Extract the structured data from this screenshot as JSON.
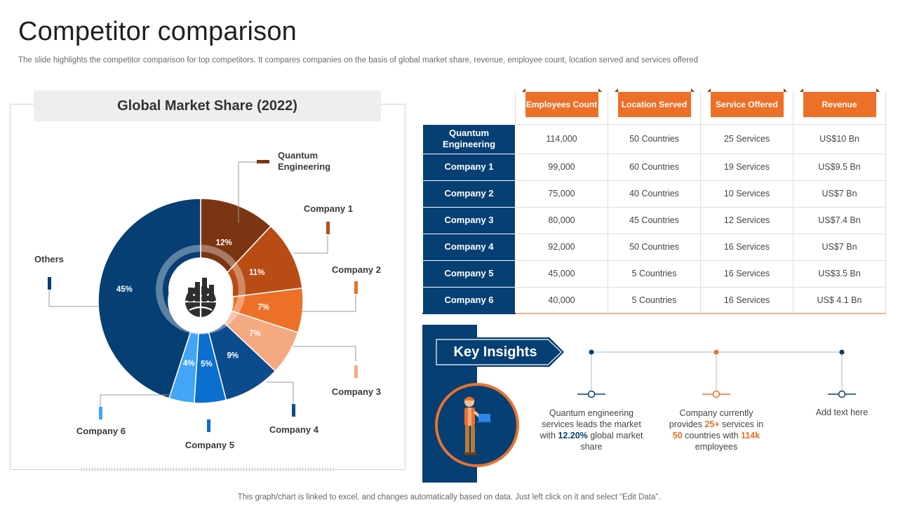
{
  "header": {
    "title": "Competitor comparison",
    "subtitle": "The slide highlights the competitor comparison for top competitors. It compares companies on the basis of global market share, revenue, employee count, location served and services offered"
  },
  "chart_data": {
    "type": "pie",
    "title": "Global Market Share (2022)",
    "categories": [
      "Quantum Engineering",
      "Company 1",
      "Company 2",
      "Company 3",
      "Company 4",
      "Company 5",
      "Company 6",
      "Others"
    ],
    "values": [
      12,
      11,
      7,
      7,
      9,
      5,
      4,
      45
    ],
    "value_labels": [
      "12%",
      "11%",
      "7%",
      "7%",
      "9%",
      "5%",
      "4%",
      "45%"
    ],
    "unit": "%",
    "colors": [
      "#7c3512",
      "#b94c14",
      "#ed7028",
      "#f4a981",
      "#0c4c8c",
      "#0a6fcf",
      "#42a5f5",
      "#063f73"
    ],
    "style": "donut"
  },
  "table": {
    "headers": [
      "Employees Count",
      "Location Served",
      "Service Offered",
      "Revenue"
    ],
    "rows": [
      {
        "name": "Quantum Engineering",
        "cells": [
          "114,000",
          "50 Countries",
          "25 Services",
          "US$10 Bn"
        ]
      },
      {
        "name": "Company 1",
        "cells": [
          "99,000",
          "60 Countries",
          "19 Services",
          "US$9.5 Bn"
        ]
      },
      {
        "name": "Company 2",
        "cells": [
          "75,000",
          "40 Countries",
          "10 Services",
          "US$7 Bn"
        ]
      },
      {
        "name": "Company 3",
        "cells": [
          "80,000",
          "45 Countries",
          "12 Services",
          "US$7.4 Bn"
        ]
      },
      {
        "name": "Company 4",
        "cells": [
          "92,000",
          "50 Countries",
          "16 Services",
          "US$7 Bn"
        ]
      },
      {
        "name": "Company 5",
        "cells": [
          "45,000",
          "5 Countries",
          "16 Services",
          "US$3.5 Bn"
        ]
      },
      {
        "name": "Company 6",
        "cells": [
          "40,000",
          "5 Countries",
          "16 Services",
          "US$ 4.1 Bn"
        ]
      }
    ]
  },
  "insights": {
    "title": "Key Insights",
    "items": [
      {
        "pre": "Quantum engineering services leads the market with ",
        "highlight": "12.20%",
        "post": " global market share"
      },
      {
        "pre": "Company currently provides ",
        "h1": "25+",
        "mid1": " services in ",
        "h2": "50",
        "mid2": " countries with ",
        "h3": "114k",
        "post": " employees"
      },
      {
        "text": "Add text here"
      }
    ]
  },
  "footer": {
    "text": "This graph/chart is linked to excel,  and changes automatically based on data. Just left click on it and select “Edit Data”."
  },
  "icons": {
    "center": "globe-chart-icon",
    "avatar": "engineer-with-laptop-icon"
  }
}
